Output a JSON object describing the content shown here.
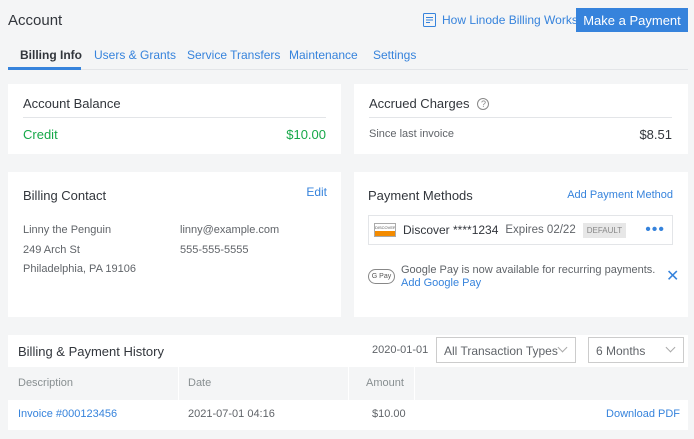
{
  "header": {
    "title": "Account",
    "docs_link": "How Linode Billing Works",
    "make_payment": "Make a Payment"
  },
  "tabs": [
    {
      "label": "Billing Info",
      "active": true
    },
    {
      "label": "Users & Grants"
    },
    {
      "label": "Service Transfers"
    },
    {
      "label": "Maintenance"
    },
    {
      "label": "Settings"
    }
  ],
  "balance": {
    "title": "Account Balance",
    "label": "Credit",
    "value": "$10.00"
  },
  "accrued": {
    "title": "Accrued Charges",
    "label": "Since last invoice",
    "value": "$8.51"
  },
  "contact": {
    "title": "Billing Contact",
    "edit": "Edit",
    "name": "Linny the Penguin",
    "address1": "249 Arch St",
    "address2": "Philadelphia, PA 19106",
    "email": "linny@example.com",
    "phone": "555-555-5555"
  },
  "payment": {
    "title": "Payment Methods",
    "add": "Add Payment Method",
    "card": {
      "brand_logo": "DISCOVER",
      "name": "Discover ****1234",
      "expires": "Expires 02/22",
      "badge": "DEFAULT"
    },
    "gpay": {
      "logo": "G Pay",
      "message": "Google Pay is now available for recurring payments.",
      "add": "Add Google Pay"
    }
  },
  "history": {
    "title": "Billing & Payment History",
    "date": "2020-01-01",
    "type_filter": "All Transaction Types",
    "period_filter": "6 Months",
    "columns": [
      "Description",
      "Date",
      "Amount"
    ],
    "rows": [
      {
        "description": "Invoice #000123456",
        "date": "2021-07-01 04:16",
        "amount": "$10.00",
        "action": "Download PDF"
      }
    ]
  },
  "colors": {
    "accent": "#3683dc",
    "credit": "#17a849"
  }
}
